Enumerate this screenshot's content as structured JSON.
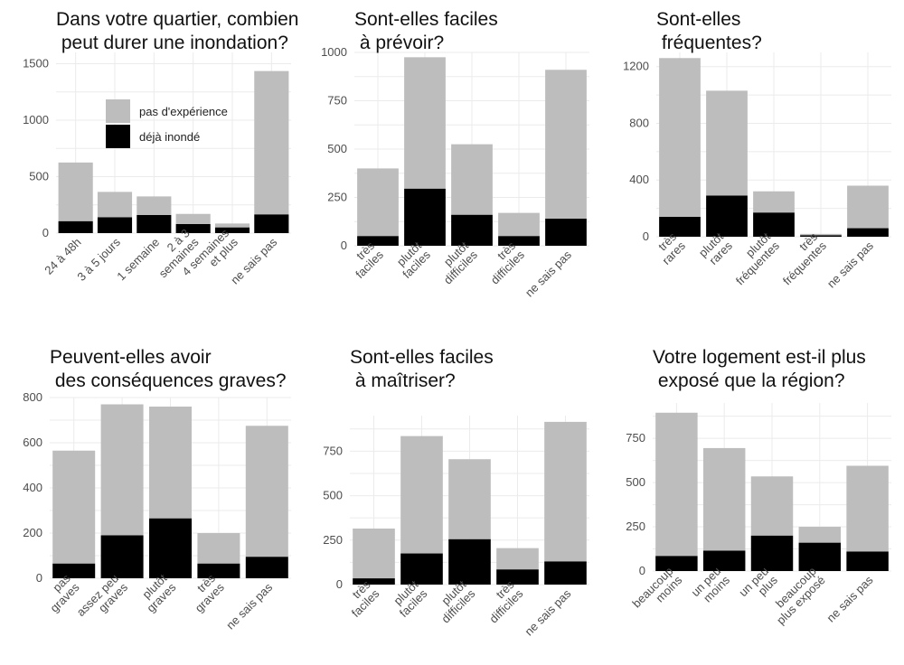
{
  "colors": {
    "no_experience": "#bdbdbd",
    "flooded": "#000000",
    "grid": "#ebebeb"
  },
  "legend": {
    "placement": "inside-top-left of first panel",
    "items": [
      "pas d'expérience",
      "déjà inondé"
    ]
  },
  "chart_data": [
    {
      "type": "bar",
      "stacked": true,
      "title": [
        "Dans votre quartier, combien",
        " peut durer une inondation?"
      ],
      "categories": [
        [
          "24 à 48h"
        ],
        [
          "3 à 5 jours"
        ],
        [
          "1 semaine"
        ],
        [
          "2 à 3",
          "semaines"
        ],
        [
          "4 semaines",
          "et plus"
        ],
        [
          "ne sais pas"
        ]
      ],
      "series": [
        {
          "name": "déjà inondé",
          "values": [
            105,
            140,
            160,
            80,
            50,
            165
          ]
        },
        {
          "name": "pas d'expérience",
          "values": [
            520,
            225,
            165,
            90,
            35,
            1270
          ]
        }
      ],
      "ylim": [
        0,
        1600
      ],
      "yticks": [
        0,
        500,
        1000,
        1500
      ],
      "grid": true
    },
    {
      "type": "bar",
      "stacked": true,
      "title": [
        "Sont-elles faciles",
        " à prévoir?"
      ],
      "categories": [
        [
          "très",
          "faciles"
        ],
        [
          "plutôt",
          "faciles"
        ],
        [
          "plutôt",
          "difficiles"
        ],
        [
          "très",
          "difficiles"
        ],
        [
          "ne sais pas"
        ]
      ],
      "series": [
        {
          "name": "déjà inondé",
          "values": [
            50,
            295,
            160,
            50,
            140
          ]
        },
        {
          "name": "pas d'expérience",
          "values": [
            350,
            680,
            365,
            120,
            770
          ]
        }
      ],
      "ylim": [
        0,
        1000
      ],
      "yticks": [
        0,
        250,
        500,
        750,
        1000
      ],
      "grid": true
    },
    {
      "type": "bar",
      "stacked": true,
      "title": [
        "Sont-elles",
        " fréquentes?"
      ],
      "categories": [
        [
          "très",
          "rares"
        ],
        [
          "plutôt",
          "rares"
        ],
        [
          "plutôt",
          "fréquentes"
        ],
        [
          "très",
          "fréquentes"
        ],
        [
          "ne sais pas"
        ]
      ],
      "series": [
        {
          "name": "déjà inondé",
          "values": [
            140,
            290,
            170,
            10,
            60
          ]
        },
        {
          "name": "pas d'expérience",
          "values": [
            1120,
            740,
            150,
            10,
            300
          ]
        }
      ],
      "ylim": [
        0,
        1300
      ],
      "yticks": [
        0,
        400,
        800,
        1200
      ],
      "grid": true
    },
    {
      "type": "bar",
      "stacked": true,
      "title": [
        "Peuvent-elles avoir",
        " des conséquences graves?"
      ],
      "categories": [
        [
          "pas",
          "graves"
        ],
        [
          "assez peu",
          "graves"
        ],
        [
          "plutôt",
          "graves"
        ],
        [
          "très",
          "graves"
        ],
        [
          "ne sais pas"
        ]
      ],
      "series": [
        {
          "name": "déjà inondé",
          "values": [
            65,
            190,
            265,
            65,
            95
          ]
        },
        {
          "name": "pas d'expérience",
          "values": [
            500,
            580,
            495,
            135,
            580
          ]
        }
      ],
      "ylim": [
        0,
        800
      ],
      "yticks": [
        0,
        200,
        400,
        600,
        800
      ],
      "grid": true
    },
    {
      "type": "bar",
      "stacked": true,
      "title": [
        "Sont-elles faciles",
        " à maîtriser?"
      ],
      "categories": [
        [
          "très",
          "faciles"
        ],
        [
          "plutôt",
          "faciles"
        ],
        [
          "plutôt",
          "difficiles"
        ],
        [
          "très",
          "difficiles"
        ],
        [
          "ne sais pas"
        ]
      ],
      "series": [
        {
          "name": "déjà inondé",
          "values": [
            35,
            175,
            255,
            85,
            130
          ]
        },
        {
          "name": "pas d'expérience",
          "values": [
            280,
            660,
            450,
            120,
            785
          ]
        }
      ],
      "ylim": [
        0,
        950
      ],
      "yticks": [
        0,
        250,
        500,
        750
      ],
      "grid": true
    },
    {
      "type": "bar",
      "stacked": true,
      "title": [
        "Votre logement est-il plus",
        " exposé que la région?"
      ],
      "categories": [
        [
          "beaucoup",
          "moins"
        ],
        [
          "un peu",
          "moins"
        ],
        [
          "un peu",
          "plus"
        ],
        [
          "beaucoup",
          "plus exposé"
        ],
        [
          "ne sais pas"
        ]
      ],
      "series": [
        {
          "name": "déjà inondé",
          "values": [
            85,
            115,
            200,
            160,
            110
          ]
        },
        {
          "name": "pas d'expérience",
          "values": [
            810,
            580,
            335,
            90,
            485
          ]
        }
      ],
      "ylim": [
        0,
        950
      ],
      "yticks": [
        0,
        250,
        500,
        750
      ],
      "grid": true
    }
  ]
}
